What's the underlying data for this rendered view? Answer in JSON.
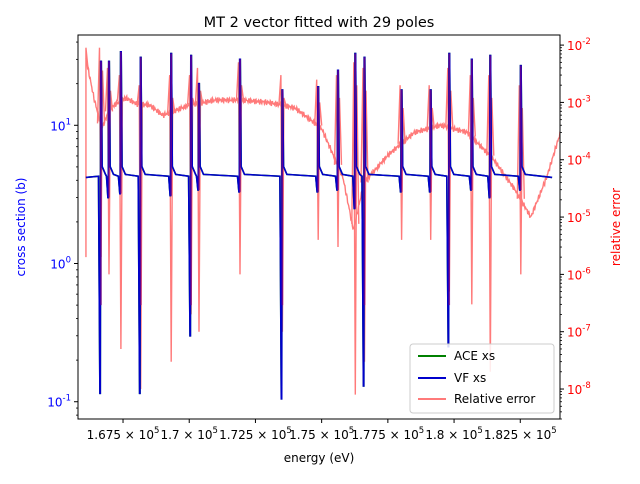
{
  "chart_data": {
    "type": "line",
    "title": "MT 2 vector fitted with 29 poles",
    "xlabel": "energy (eV)",
    "ylabel_left": "cross section (b)",
    "ylabel_right": "relative error",
    "x_scale": "linear",
    "y_left_scale": "log",
    "y_right_scale": "log",
    "xlim": [
      165800,
      184000
    ],
    "ylim_left": [
      0.075,
      45
    ],
    "ylim_right": [
      3e-09,
      0.015
    ],
    "x_ticks": [
      {
        "value": 167500,
        "label": "1.675 × 10^5"
      },
      {
        "value": 170000,
        "label": "1.7 × 10^5"
      },
      {
        "value": 172500,
        "label": "1.725 × 10^5"
      },
      {
        "value": 175000,
        "label": "1.75 × 10^5"
      },
      {
        "value": 177500,
        "label": "1.775 × 10^5"
      },
      {
        "value": 180000,
        "label": "1.8 × 10^5"
      },
      {
        "value": 182500,
        "label": "1.825 × 10^5"
      }
    ],
    "y_left_ticks": [
      {
        "value": 0.1,
        "label": "10^-1"
      },
      {
        "value": 1,
        "label": "10^0"
      },
      {
        "value": 10,
        "label": "10^1"
      }
    ],
    "y_right_ticks": [
      {
        "value": 1e-08,
        "label": "10^-8"
      },
      {
        "value": 1e-07,
        "label": "10^-7"
      },
      {
        "value": 1e-06,
        "label": "10^-6"
      },
      {
        "value": 1e-05,
        "label": "10^-5"
      },
      {
        "value": 0.0001,
        "label": "10^-4"
      },
      {
        "value": 0.001,
        "label": "10^-3"
      },
      {
        "value": 0.01,
        "label": "10^-2"
      }
    ],
    "baseline_cross_section": 4.2,
    "resonances": [
      {
        "x": 166650,
        "peak": 29,
        "dip": 0.115
      },
      {
        "x": 166950,
        "peak": 29,
        "dip": 3.0
      },
      {
        "x": 167400,
        "peak": 34,
        "dip": 3.2
      },
      {
        "x": 168150,
        "peak": 31,
        "dip": 0.115
      },
      {
        "x": 169300,
        "peak": 33,
        "dip": 3.1
      },
      {
        "x": 170050,
        "peak": 32,
        "dip": 0.3
      },
      {
        "x": 170350,
        "peak": 20,
        "dip": 3.4
      },
      {
        "x": 171900,
        "peak": 30,
        "dip": 3.3
      },
      {
        "x": 173500,
        "peak": 18,
        "dip": 0.105
      },
      {
        "x": 174850,
        "peak": 19,
        "dip": 3.3
      },
      {
        "x": 175600,
        "peak": 25,
        "dip": 3.4
      },
      {
        "x": 176250,
        "peak": 33,
        "dip": 2.5
      },
      {
        "x": 176600,
        "peak": 31,
        "dip": 0.13
      },
      {
        "x": 178000,
        "peak": 18,
        "dip": 3.3
      },
      {
        "x": 179100,
        "peak": 18,
        "dip": 3.3
      },
      {
        "x": 179800,
        "peak": 33,
        "dip": 0.25
      },
      {
        "x": 180650,
        "peak": 30,
        "dip": 3.4
      },
      {
        "x": 181350,
        "peak": 32,
        "dip": 3.0
      },
      {
        "x": 182500,
        "peak": 27,
        "dip": 3.4
      }
    ],
    "series": [
      {
        "name": "ACE xs",
        "color": "#008000",
        "axis": "left"
      },
      {
        "name": "VF xs",
        "color": "#0000cc",
        "axis": "left"
      },
      {
        "name": "Relative error",
        "color": "#ff7a7a",
        "axis": "right"
      }
    ],
    "relative_error": {
      "x_range": [
        166100,
        184100
      ],
      "envelope": [
        [
          166100,
          0.006
        ],
        [
          166400,
          0.0012
        ],
        [
          166700,
          0.00035
        ],
        [
          167000,
          0.0008
        ],
        [
          167600,
          0.0012
        ],
        [
          168000,
          0.00095
        ],
        [
          168500,
          0.0009
        ],
        [
          169000,
          0.0006
        ],
        [
          169400,
          0.0007
        ],
        [
          170000,
          0.0009
        ],
        [
          171000,
          0.0011
        ],
        [
          172000,
          0.0011
        ],
        [
          173000,
          0.001
        ],
        [
          174000,
          0.0008
        ],
        [
          175000,
          0.00035
        ],
        [
          175800,
          5e-05
        ],
        [
          176200,
          6e-06
        ],
        [
          176600,
          4e-05
        ],
        [
          177500,
          0.00012
        ],
        [
          178500,
          0.0003
        ],
        [
          179500,
          0.0004
        ],
        [
          180500,
          0.0003
        ],
        [
          181500,
          0.0001
        ],
        [
          182300,
          3e-05
        ],
        [
          182900,
          1e-05
        ],
        [
          183500,
          5e-05
        ],
        [
          184100,
          0.0004
        ]
      ],
      "spike_tops": [
        0.009,
        0.004,
        0.003,
        0.002,
        0.003,
        0.003,
        0.004,
        0.005,
        0.003,
        0.0025,
        0.003,
        0.005,
        0.004,
        0.002,
        0.002,
        0.004,
        0.003,
        0.003,
        0.002
      ],
      "spike_bottoms": [
        2e-06,
        1e-06,
        5e-08,
        1e-08,
        3e-08,
        2e-07,
        1e-07,
        1e-06,
        1e-07,
        4e-06,
        3e-06,
        8e-09,
        3e-08,
        4e-06,
        4e-06,
        5e-07,
        3e-07,
        2e-08,
        1e-06
      ]
    },
    "legend": {
      "placement": "lower-right",
      "entries": [
        "ACE xs",
        "VF xs",
        "Relative error"
      ]
    },
    "grid": false
  }
}
